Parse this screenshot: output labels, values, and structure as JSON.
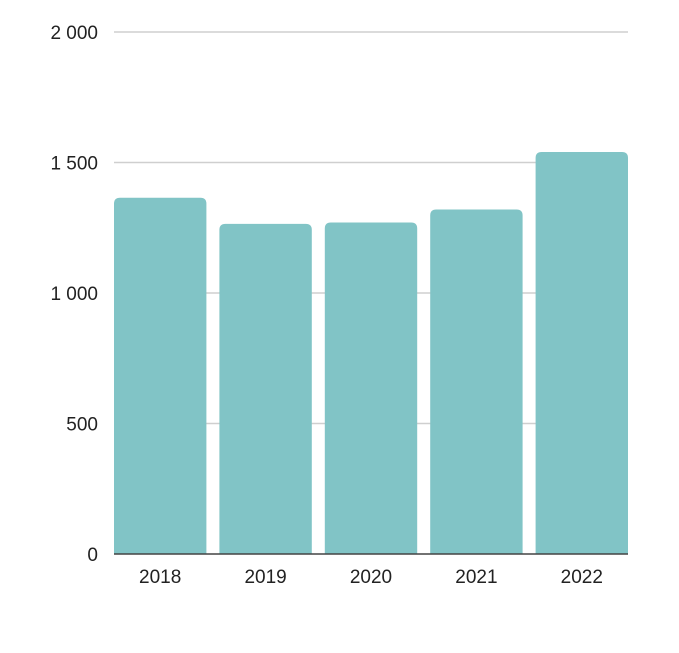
{
  "chart_data": {
    "type": "bar",
    "title": "",
    "xlabel": "",
    "ylabel": "",
    "categories": [
      "2018",
      "2019",
      "2020",
      "2021",
      "2022"
    ],
    "values": [
      1365,
      1265,
      1270,
      1320,
      1540
    ],
    "ylim": [
      0,
      2000
    ],
    "yticks": [
      0,
      500,
      1000,
      1500,
      2000
    ],
    "ytick_labels": [
      "0",
      "500",
      "1 000",
      "1 500",
      "2 000"
    ],
    "grid": true,
    "legend": "none",
    "colors": {
      "bar": "#81C4C6",
      "grid": "#cfcfcf",
      "baseline": "#444444",
      "text": "#222222"
    }
  }
}
